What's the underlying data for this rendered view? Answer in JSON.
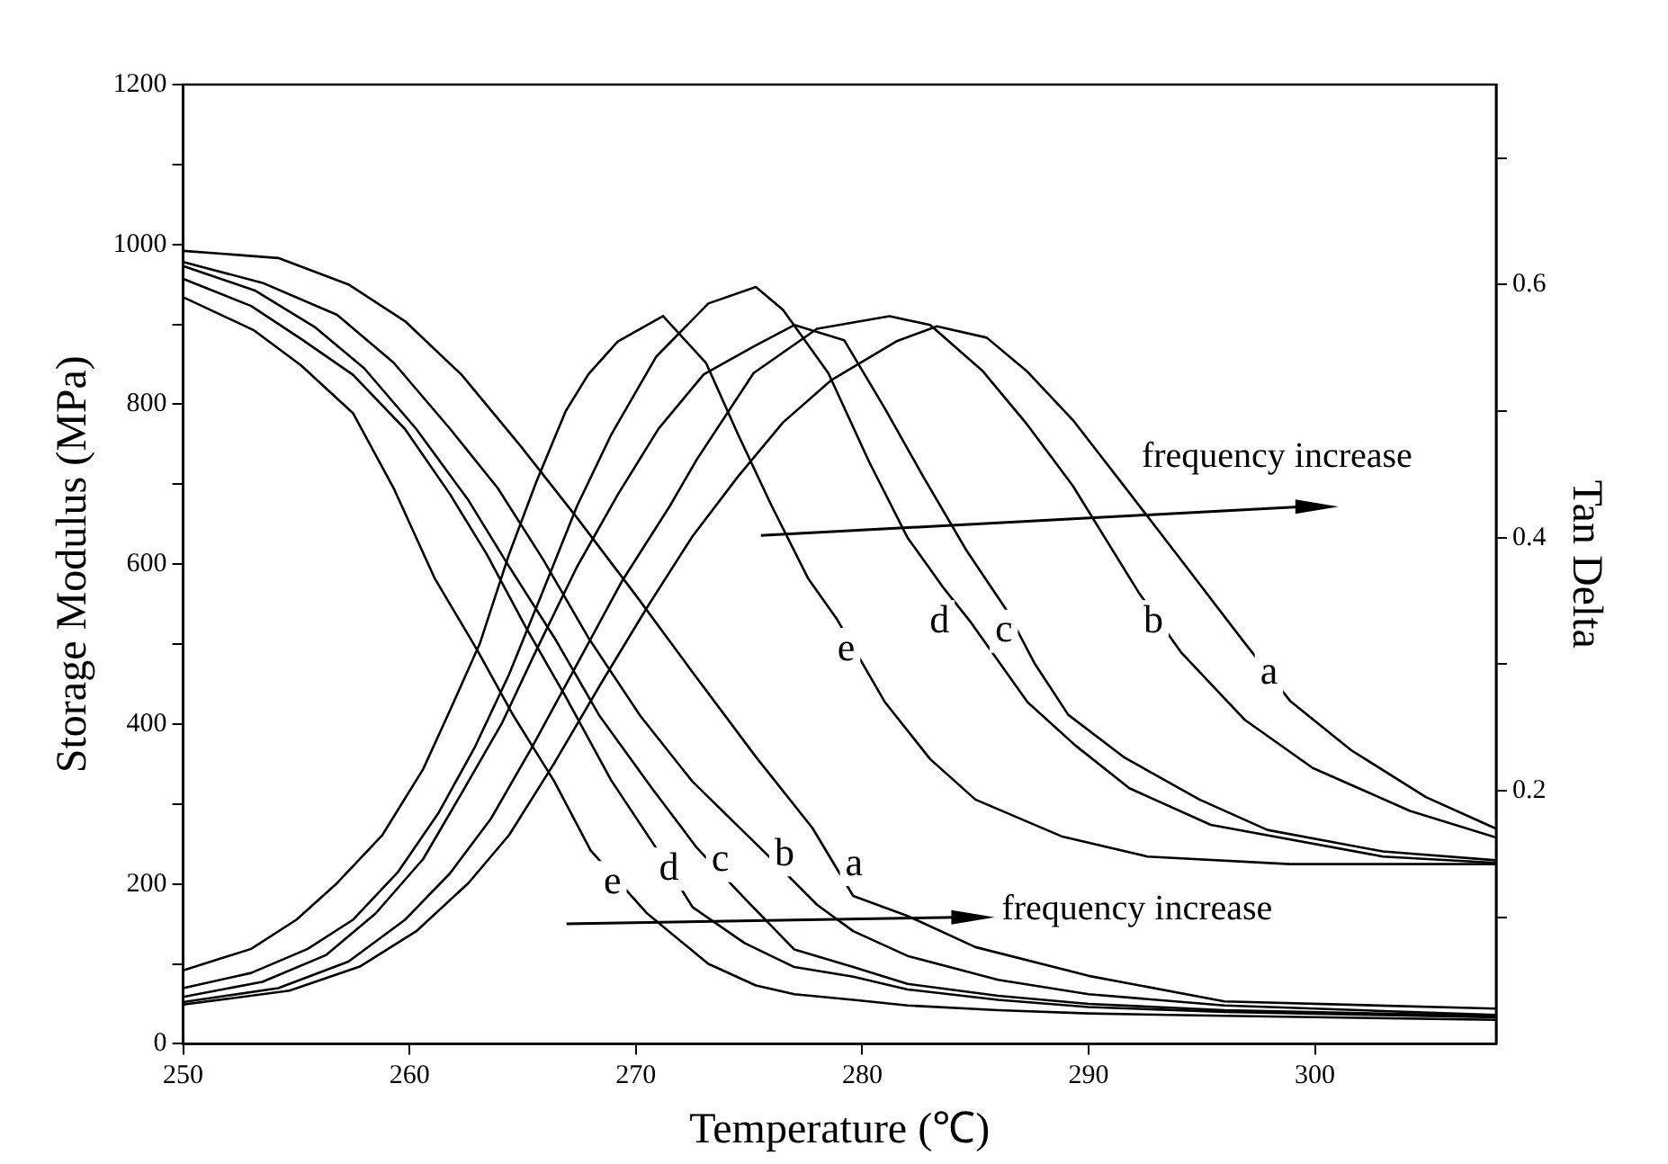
{
  "chart_data": {
    "type": "line",
    "xlabel": "Temperature (℃)",
    "ylabel": "Storage Modulus (MPa)",
    "y2label": "Tan Delta",
    "xlim": [
      250,
      308
    ],
    "xticks": [
      250,
      260,
      270,
      280,
      290,
      300
    ],
    "ylim": [
      0,
      1200
    ],
    "yticks": [
      0,
      {
        "value": 100,
        "label": null
      },
      200,
      {
        "value": 300,
        "label": null
      },
      400,
      {
        "value": 500,
        "label": null
      },
      600,
      {
        "value": 700,
        "label": null
      },
      800,
      {
        "value": 900,
        "label": null
      },
      1000,
      {
        "value": 1100,
        "label": null
      },
      1200
    ],
    "y2lim": [
      0,
      0.758
    ],
    "y2ticks": [
      {
        "value": 0.1,
        "label": null
      },
      0.2,
      {
        "value": 0.3,
        "label": null
      },
      0.4,
      {
        "value": 0.5,
        "label": null
      },
      0.6,
      {
        "value": 0.7,
        "label": null
      }
    ],
    "grid": false,
    "legend": false,
    "marker": "none",
    "line_style": "solid",
    "series": [
      {
        "color": "#000000",
        "x": [
          250,
          253.1,
          255.2,
          257.5,
          259.3,
          261.1,
          263,
          264.6,
          266.4,
          268,
          270.5,
          273.2,
          275.3,
          277,
          279.6,
          282,
          286,
          290,
          296,
          308
        ],
        "values": [
          934,
          893,
          849,
          789,
          695,
          583,
          492,
          410,
          328,
          242,
          163,
          100,
          73,
          62,
          55,
          48,
          42,
          38,
          35,
          30
        ]
      },
      {
        "color": "#000000",
        "x": [
          250,
          253,
          255.2,
          257.5,
          259.8,
          261.8,
          263.4,
          265.1,
          266.9,
          268.9,
          270.8,
          272.5,
          274.8,
          277,
          279.6,
          282,
          286,
          290,
          296,
          308
        ],
        "values": [
          957,
          923,
          882,
          837,
          769,
          687,
          613,
          523,
          434,
          330,
          249,
          171,
          126,
          96,
          84,
          68,
          55,
          46,
          40,
          33
        ]
      },
      {
        "color": "#000000",
        "x": [
          250,
          253.2,
          255.8,
          258,
          260.3,
          262.6,
          264.4,
          266.4,
          268.4,
          270.7,
          272.7,
          274.8,
          277,
          279.6,
          282,
          286,
          290,
          296,
          308
        ],
        "values": [
          973,
          942,
          897,
          845,
          769,
          680,
          597,
          508,
          410,
          320,
          245,
          182,
          118,
          96,
          75,
          60,
          50,
          42,
          35
        ]
      },
      {
        "color": "#000000",
        "x": [
          250,
          253.5,
          256.8,
          259.3,
          261.8,
          263.9,
          265.9,
          267.9,
          270.2,
          272.5,
          276,
          278,
          279.6,
          282,
          286,
          290,
          296,
          308
        ],
        "values": [
          978,
          952,
          912,
          852,
          769,
          695,
          606,
          508,
          410,
          328,
          231,
          174,
          141,
          110,
          80,
          62,
          48,
          36
        ]
      },
      {
        "color": "#000000",
        "x": [
          250,
          254.2,
          257.3,
          259.8,
          262.3,
          264.9,
          267.4,
          270,
          272.5,
          275.3,
          277.8,
          279.6,
          282,
          285,
          290,
          296,
          308
        ],
        "values": [
          992,
          983,
          950,
          904,
          837,
          748,
          658,
          561,
          465,
          359,
          270,
          185,
          160,
          121,
          85,
          53,
          44
        ]
      },
      {
        "color": "#000000",
        "axis": "y2",
        "x": [
          250,
          253,
          255,
          256.8,
          258.8,
          260.6,
          261.8,
          263.1,
          264.4,
          265.6,
          266.9,
          267.9,
          269.2,
          271.2,
          273.1,
          274.5,
          276,
          277.6,
          278.9,
          281,
          283,
          285,
          288.8,
          292.6,
          298.9,
          308
        ],
        "values": [
          0.058,
          0.075,
          0.098,
          0.127,
          0.165,
          0.217,
          0.264,
          0.316,
          0.387,
          0.444,
          0.5,
          0.529,
          0.555,
          0.575,
          0.538,
          0.482,
          0.425,
          0.368,
          0.335,
          0.27,
          0.225,
          0.193,
          0.164,
          0.148,
          0.142,
          0.142
        ]
      },
      {
        "color": "#000000",
        "axis": "y2",
        "x": [
          250,
          253,
          255.5,
          257.5,
          259.5,
          261.3,
          262.9,
          264.4,
          265.9,
          267.4,
          268.9,
          270.9,
          273.2,
          275.3,
          276.5,
          278.5,
          280.3,
          282,
          283.6,
          284.8,
          287.3,
          289.4,
          291.8,
          295.4,
          303,
          308
        ],
        "values": [
          0.044,
          0.056,
          0.075,
          0.098,
          0.136,
          0.183,
          0.235,
          0.292,
          0.358,
          0.425,
          0.481,
          0.543,
          0.585,
          0.598,
          0.58,
          0.53,
          0.46,
          0.4,
          0.36,
          0.333,
          0.27,
          0.236,
          0.202,
          0.173,
          0.148,
          0.143
        ]
      },
      {
        "color": "#000000",
        "axis": "y2",
        "x": [
          250,
          253.5,
          256.3,
          258.5,
          260.6,
          262.3,
          264.1,
          265.6,
          267.4,
          269.2,
          271,
          273,
          275.3,
          277,
          279.2,
          281,
          282.7,
          284.6,
          286.4,
          287.6,
          289.1,
          291.6,
          294.9,
          297.9,
          303,
          308
        ],
        "values": [
          0.037,
          0.049,
          0.07,
          0.103,
          0.146,
          0.198,
          0.254,
          0.311,
          0.377,
          0.434,
          0.486,
          0.529,
          0.552,
          0.568,
          0.556,
          0.502,
          0.448,
          0.39,
          0.342,
          0.301,
          0.26,
          0.226,
          0.193,
          0.169,
          0.152,
          0.145
        ]
      },
      {
        "color": "#000000",
        "axis": "y2",
        "x": [
          250,
          254.2,
          257.3,
          259.8,
          261.8,
          263.6,
          265.4,
          267.4,
          269.4,
          271.5,
          272.7,
          275.2,
          278,
          281.2,
          283,
          285.3,
          287.3,
          289.3,
          292.2,
          294.1,
          296.9,
          299.9,
          304.2,
          308
        ],
        "values": [
          0.033,
          0.044,
          0.065,
          0.098,
          0.135,
          0.178,
          0.234,
          0.3,
          0.366,
          0.425,
          0.462,
          0.53,
          0.565,
          0.575,
          0.568,
          0.532,
          0.489,
          0.441,
          0.357,
          0.309,
          0.256,
          0.218,
          0.184,
          0.163
        ]
      },
      {
        "color": "#000000",
        "axis": "y2",
        "x": [
          250,
          254.7,
          257.8,
          260.3,
          262.6,
          264.4,
          266.4,
          268.4,
          270.5,
          272.5,
          274.5,
          276.5,
          278.6,
          281.5,
          283.3,
          285.5,
          287.3,
          289.3,
          291.6,
          294.1,
          296.8,
          298.9,
          301.6,
          304.9,
          308
        ],
        "values": [
          0.031,
          0.042,
          0.061,
          0.089,
          0.127,
          0.165,
          0.222,
          0.283,
          0.345,
          0.401,
          0.448,
          0.491,
          0.524,
          0.555,
          0.567,
          0.558,
          0.531,
          0.493,
          0.44,
          0.382,
          0.319,
          0.271,
          0.232,
          0.195,
          0.17
        ]
      }
    ],
    "annotations": [
      "frequency increase",
      "frequency increase",
      "e",
      "d",
      "c",
      "b",
      "a",
      "e",
      "d",
      "c",
      "b",
      "a"
    ]
  }
}
